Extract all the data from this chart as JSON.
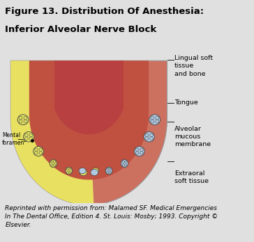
{
  "title_line1": "Figure 13. Distribution Of Anesthesia:",
  "title_line2": "Inferior Alveolar Nerve Block",
  "title_fontsize": 9.5,
  "bg_color": "#e0e0e0",
  "caption": "Reprinted with permission from: Malamed SF. Medical Emergencies\nIn The Dental Office, Edition 4. St. Louis: Mosby; 1993. Copyright ©\nElsevier.",
  "caption_fontsize": 6.5,
  "labels": {
    "lingual": "Lingual soft\ntissue\nand bone",
    "tongue": "Tongue",
    "alveolar": "Alveolar\nmucous\nmembrane",
    "extraoral": "Extraoral\nsoft tissue",
    "mental": "Mental\nforamen"
  },
  "colors": {
    "outer_tissue_red": "#cc7060",
    "yellow_anesthesia": "#e8e060",
    "red_tongue": "#b84040",
    "tooth_fill_left": "#dede60",
    "tooth_fill_right": "#b0c8e0",
    "tooth_outline": "#444444",
    "jaw_outline": "#888888",
    "inner_red": "#c05040",
    "title_bg": "#cccccc"
  }
}
